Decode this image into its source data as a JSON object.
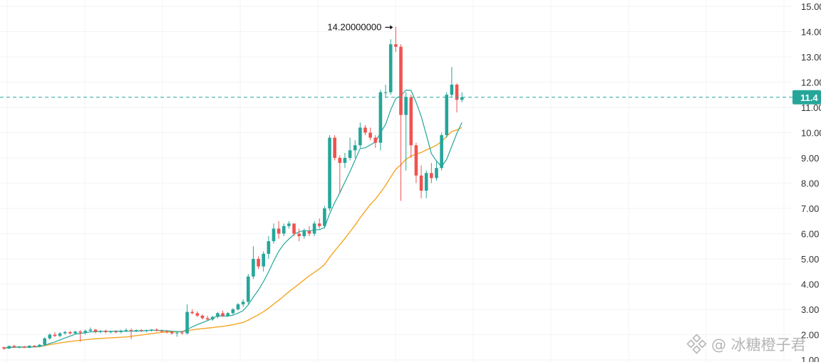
{
  "chart_data": {
    "type": "candlestick",
    "title": "",
    "xlabel": "",
    "ylabel": "",
    "ylim": [
      1.0,
      15.0
    ],
    "y_ticks": [
      "1.00",
      "2.00",
      "3.00",
      "4.00",
      "5.00",
      "6.00",
      "7.00",
      "8.00",
      "9.00",
      "10.00",
      "11.00",
      "12.00",
      "13.00",
      "14.00",
      "15.00"
    ],
    "grid": true,
    "colors": {
      "up": "#26a69a",
      "down": "#ef5350",
      "ma_fast": "#26a69a",
      "ma_slow": "#f5a623",
      "grid": "#f0f3f7"
    },
    "high_annotation": {
      "label": "14.20000000",
      "value": 14.2
    },
    "current_price": {
      "label": "11.4",
      "value": 11.4
    },
    "candles": [
      [
        1.5,
        1.52,
        1.4,
        1.45
      ],
      [
        1.45,
        1.56,
        1.43,
        1.55
      ],
      [
        1.55,
        1.6,
        1.48,
        1.5
      ],
      [
        1.5,
        1.55,
        1.45,
        1.53
      ],
      [
        1.53,
        1.55,
        1.47,
        1.48
      ],
      [
        1.48,
        1.58,
        1.46,
        1.56
      ],
      [
        1.56,
        1.58,
        1.5,
        1.52
      ],
      [
        1.52,
        1.62,
        1.5,
        1.6
      ],
      [
        1.6,
        1.9,
        1.58,
        1.85
      ],
      [
        1.85,
        2.05,
        1.8,
        2.0
      ],
      [
        2.0,
        2.1,
        1.9,
        1.95
      ],
      [
        1.95,
        2.1,
        1.9,
        2.05
      ],
      [
        2.05,
        2.15,
        2.0,
        2.1
      ],
      [
        2.1,
        2.15,
        2.0,
        2.05
      ],
      [
        2.05,
        2.15,
        2.0,
        2.12
      ],
      [
        2.12,
        2.18,
        1.72,
        2.08
      ],
      [
        2.08,
        2.2,
        2.0,
        2.15
      ],
      [
        2.15,
        2.28,
        2.1,
        2.2
      ],
      [
        2.2,
        2.22,
        2.05,
        2.12
      ],
      [
        2.12,
        2.18,
        2.05,
        2.15
      ],
      [
        2.15,
        2.2,
        2.05,
        2.1
      ],
      [
        2.1,
        2.15,
        2.05,
        2.12
      ],
      [
        2.12,
        2.18,
        2.05,
        2.1
      ],
      [
        2.1,
        2.2,
        2.05,
        2.15
      ],
      [
        2.15,
        2.25,
        2.1,
        2.18
      ],
      [
        2.18,
        2.25,
        1.82,
        2.15
      ],
      [
        2.15,
        2.2,
        2.1,
        2.18
      ],
      [
        2.18,
        2.22,
        2.1,
        2.15
      ],
      [
        2.15,
        2.2,
        2.1,
        2.18
      ],
      [
        2.18,
        2.22,
        2.12,
        2.2
      ],
      [
        2.2,
        2.25,
        2.12,
        2.15
      ],
      [
        2.15,
        2.2,
        2.08,
        2.12
      ],
      [
        2.12,
        2.18,
        2.05,
        2.1
      ],
      [
        2.1,
        2.15,
        2.0,
        2.05
      ],
      [
        2.05,
        2.12,
        1.92,
        2.08
      ],
      [
        2.08,
        2.15,
        2.0,
        2.05
      ],
      [
        2.05,
        3.2,
        2.0,
        2.9
      ],
      [
        2.9,
        3.0,
        2.8,
        2.85
      ],
      [
        2.85,
        2.92,
        2.7,
        2.75
      ],
      [
        2.75,
        2.8,
        2.6,
        2.65
      ],
      [
        2.65,
        2.75,
        2.55,
        2.6
      ],
      [
        2.6,
        2.75,
        2.55,
        2.7
      ],
      [
        2.7,
        2.9,
        2.65,
        2.85
      ],
      [
        2.85,
        2.95,
        2.7,
        2.75
      ],
      [
        2.75,
        2.9,
        2.7,
        2.85
      ],
      [
        2.85,
        3.05,
        2.8,
        3.0
      ],
      [
        3.0,
        3.25,
        2.95,
        3.2
      ],
      [
        3.2,
        3.4,
        3.1,
        3.3
      ],
      [
        3.3,
        4.4,
        3.2,
        4.3
      ],
      [
        4.3,
        5.5,
        4.2,
        5.0
      ],
      [
        5.0,
        5.1,
        4.6,
        4.7
      ],
      [
        4.7,
        5.3,
        4.5,
        5.2
      ],
      [
        5.2,
        5.9,
        5.0,
        5.7
      ],
      [
        5.7,
        6.4,
        5.6,
        6.2
      ],
      [
        6.2,
        6.5,
        5.8,
        6.0
      ],
      [
        6.0,
        6.4,
        5.9,
        6.3
      ],
      [
        6.3,
        6.5,
        6.2,
        6.4
      ],
      [
        6.4,
        6.4,
        5.9,
        6.0
      ],
      [
        6.0,
        6.2,
        5.7,
        5.9
      ],
      [
        5.9,
        6.2,
        5.8,
        6.1
      ],
      [
        6.1,
        6.3,
        5.9,
        6.0
      ],
      [
        6.0,
        6.5,
        5.9,
        6.4
      ],
      [
        6.4,
        6.6,
        6.2,
        6.3
      ],
      [
        6.3,
        7.1,
        6.2,
        7.0
      ],
      [
        7.0,
        9.9,
        6.9,
        9.8
      ],
      [
        9.8,
        9.9,
        8.9,
        9.0
      ],
      [
        9.0,
        9.1,
        7.6,
        8.8
      ],
      [
        8.8,
        9.2,
        8.6,
        9.0
      ],
      [
        9.0,
        9.8,
        8.9,
        9.3
      ],
      [
        9.3,
        9.7,
        9.0,
        9.5
      ],
      [
        9.5,
        10.4,
        9.4,
        10.2
      ],
      [
        10.2,
        10.3,
        9.9,
        10.0
      ],
      [
        10.0,
        10.2,
        9.7,
        9.8
      ],
      [
        9.8,
        9.9,
        9.4,
        9.6
      ],
      [
        9.6,
        11.7,
        9.3,
        11.6
      ],
      [
        11.6,
        11.9,
        11.4,
        11.6
      ],
      [
        11.6,
        13.7,
        11.5,
        13.5
      ],
      [
        13.5,
        14.2,
        13.2,
        13.4
      ],
      [
        13.4,
        13.5,
        7.3,
        10.7
      ],
      [
        10.7,
        11.6,
        8.5,
        11.4
      ],
      [
        11.4,
        11.5,
        9.0,
        9.5
      ],
      [
        9.5,
        9.6,
        8.0,
        8.3
      ],
      [
        8.3,
        8.7,
        7.4,
        7.7
      ],
      [
        7.7,
        8.5,
        7.4,
        8.4
      ],
      [
        8.4,
        8.8,
        8.0,
        8.2
      ],
      [
        8.2,
        8.9,
        8.1,
        8.6
      ],
      [
        8.6,
        10.0,
        8.5,
        9.9
      ],
      [
        9.9,
        11.6,
        9.8,
        11.5
      ],
      [
        11.5,
        12.6,
        11.4,
        11.9
      ],
      [
        11.9,
        11.95,
        10.8,
        11.3
      ],
      [
        11.3,
        11.6,
        11.2,
        11.4
      ]
    ]
  },
  "watermark": {
    "text": "@ 冰糖橙子君",
    "icon": "binance-logo-icon"
  }
}
